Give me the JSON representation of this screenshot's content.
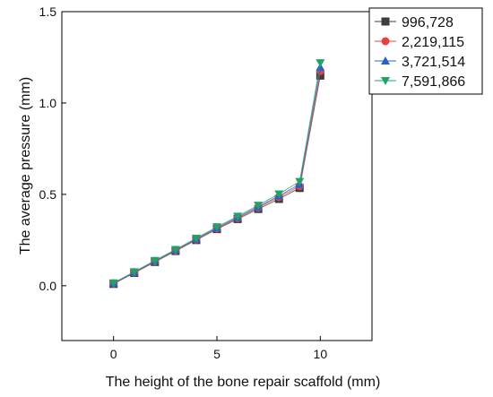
{
  "chart_data": {
    "type": "line",
    "xlabel": "The height of the bone repair scaffold (mm)",
    "ylabel": "The average pressure (mm)",
    "xlim": [
      -2.5,
      12.5
    ],
    "ylim": [
      -0.3,
      1.5
    ],
    "xticks": [
      0,
      5,
      10
    ],
    "yticks": [
      0.0,
      0.5,
      1.0,
      1.5
    ],
    "xtick_labels": [
      "0",
      "5",
      "10"
    ],
    "ytick_labels": [
      "0.0",
      "0.5",
      "1.0",
      "1.5"
    ],
    "x": [
      0,
      1,
      2,
      3,
      4,
      5,
      6,
      7,
      8,
      9,
      10
    ],
    "grid": false,
    "legend_position": "top-right",
    "series": [
      {
        "name": "996,728",
        "marker": "square",
        "color": "#3d3d3d",
        "values": [
          0.01,
          0.07,
          0.13,
          0.19,
          0.25,
          0.31,
          0.365,
          0.42,
          0.475,
          0.535,
          1.15
        ]
      },
      {
        "name": "2,219,115",
        "marker": "circle",
        "color": "#e8403e",
        "values": [
          0.012,
          0.072,
          0.133,
          0.193,
          0.253,
          0.313,
          0.37,
          0.427,
          0.485,
          0.545,
          1.175
        ]
      },
      {
        "name": "3,721,514",
        "marker": "triangle-up",
        "color": "#2b5fcf",
        "values": [
          0.013,
          0.074,
          0.135,
          0.196,
          0.256,
          0.317,
          0.374,
          0.432,
          0.492,
          0.555,
          1.195
        ]
      },
      {
        "name": "7,591,866",
        "marker": "triangle-down",
        "color": "#1fa366",
        "values": [
          0.015,
          0.076,
          0.138,
          0.198,
          0.26,
          0.322,
          0.38,
          0.44,
          0.502,
          0.57,
          1.22
        ]
      }
    ]
  }
}
